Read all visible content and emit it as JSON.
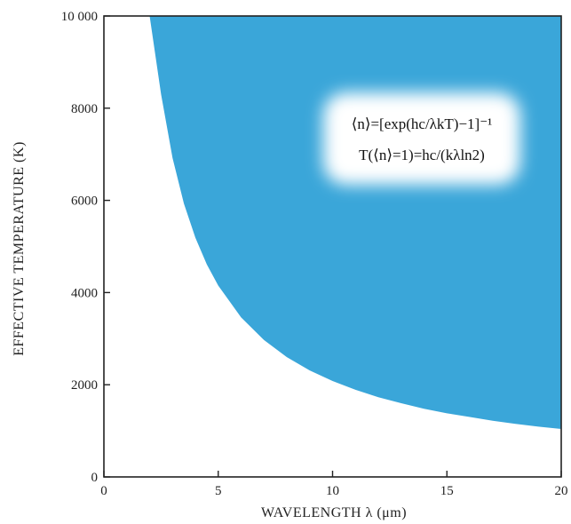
{
  "chart_data": {
    "type": "area",
    "title": "",
    "xlabel": "WAVELENGTH λ (μm)",
    "ylabel": "EFFECTIVE TEMPERATURE (K)",
    "xlim": [
      0,
      20
    ],
    "ylim": [
      0,
      10000
    ],
    "x_ticks": [
      0,
      5,
      10,
      15,
      20
    ],
    "x_tick_labels": [
      "0",
      "5",
      "10",
      "15",
      "20"
    ],
    "y_ticks": [
      0,
      2000,
      4000,
      6000,
      8000,
      10000
    ],
    "y_tick_labels": [
      "0",
      "2000",
      "4000",
      "6000",
      "8000",
      "10 000"
    ],
    "fill_color": "#3aa6d9",
    "grid": false,
    "series": [
      {
        "boundary": "T = hc/(kλ ln2)",
        "x": [
          2.0,
          2.5,
          3,
          3.5,
          4,
          4.5,
          5,
          6,
          7,
          8,
          9,
          10,
          11,
          12,
          13,
          14,
          15,
          16,
          17,
          18,
          19,
          20
        ],
        "y": [
          10000,
          8300,
          6920,
          5930,
          5190,
          4610,
          4150,
          3460,
          2970,
          2600,
          2310,
          2080,
          1890,
          1730,
          1600,
          1480,
          1380,
          1300,
          1220,
          1150,
          1090,
          1040
        ]
      }
    ],
    "annotations": [
      "⟨n⟩=[exp(hc/λkT)−1]⁻¹",
      "T(⟨n⟩=1)=hc/(kλln2)"
    ]
  }
}
